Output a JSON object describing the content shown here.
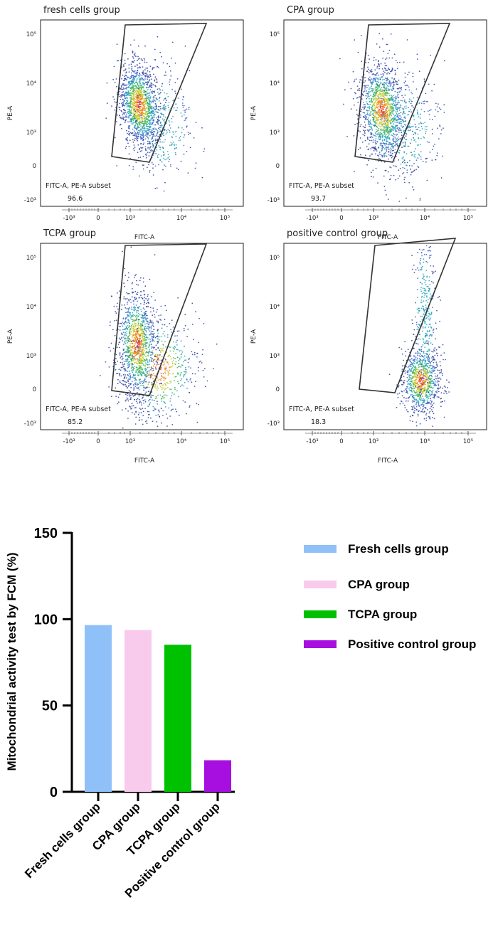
{
  "chart_data": [
    {
      "type": "scatter",
      "title": "fresh cells group",
      "xlabel": "FITC-A",
      "ylabel": "PE-A",
      "x_ticks": [
        "-10³",
        "0",
        "10³",
        "10⁴",
        "10⁵"
      ],
      "y_ticks": [
        "10⁵",
        "10⁴",
        "10³",
        "0",
        "-10³"
      ],
      "gate_name": "FITC-A, PE-A subset",
      "gate_percent": "96.6",
      "colors": {
        "dots": "#2c3e9e",
        "core": "#e03a1e"
      }
    },
    {
      "type": "scatter",
      "title": "CPA group",
      "xlabel": "FITC-A",
      "ylabel": "PE-A",
      "x_ticks": [
        "-10³",
        "0",
        "10³",
        "10⁴",
        "10⁵"
      ],
      "y_ticks": [
        "10⁵",
        "10⁴",
        "10³",
        "0",
        "-10³"
      ],
      "gate_name": "FITC-A, PE-A subset",
      "gate_percent": "93.7",
      "colors": {
        "dots": "#2c3e9e",
        "core": "#e03a1e"
      }
    },
    {
      "type": "scatter",
      "title": "TCPA group",
      "xlabel": "FITC-A",
      "ylabel": "PE-A",
      "x_ticks": [
        "-10³",
        "0",
        "10³",
        "10⁴",
        "10⁵"
      ],
      "y_ticks": [
        "10⁵",
        "10⁴",
        "10³",
        "0",
        "-10³"
      ],
      "gate_name": "FITC-A, PE-A subset",
      "gate_percent": "85.2",
      "colors": {
        "dots": "#2c3e9e",
        "core": "#e03a1e"
      }
    },
    {
      "type": "scatter",
      "title": "positive control group",
      "xlabel": "FITC-A",
      "ylabel": "PE-A",
      "x_ticks": [
        "-10³",
        "0",
        "10³",
        "10⁴",
        "10⁵"
      ],
      "y_ticks": [
        "10⁵",
        "10⁴",
        "10³",
        "0",
        "-10³"
      ],
      "gate_name": "FITC-A, PE-A subset",
      "gate_percent": "18.3",
      "colors": {
        "dots": "#2c3e9e",
        "core": "#e03a1e"
      }
    },
    {
      "type": "bar",
      "title": "",
      "xlabel": "",
      "ylabel": "Mitochondrial activity test by FCM (%)",
      "ylim": [
        0,
        150
      ],
      "yticks": [
        0,
        50,
        100,
        150
      ],
      "categories": [
        "Fresh cells group",
        "CPA group",
        "TCPA group",
        "Positive control group"
      ],
      "values": [
        96.6,
        93.7,
        85.2,
        18.3
      ],
      "colors": [
        "#90c0f8",
        "#f8cbec",
        "#00c100",
        "#a70fe0"
      ],
      "legend": {
        "position": "right",
        "entries": [
          "Fresh cells group",
          "CPA group",
          "TCPA group",
          "Positive control group"
        ]
      },
      "grid": false
    }
  ]
}
